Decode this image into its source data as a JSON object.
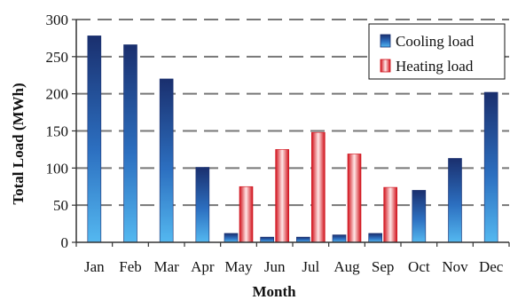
{
  "chart_data": {
    "type": "bar",
    "categories": [
      "Jan",
      "Feb",
      "Mar",
      "Apr",
      "May",
      "Jun",
      "Jul",
      "Aug",
      "Sep",
      "Oct",
      "Nov",
      "Dec"
    ],
    "series": [
      {
        "name": "Cooling load",
        "values": [
          278,
          266,
          220,
          101,
          12,
          7,
          7,
          10,
          12,
          70,
          113,
          202
        ],
        "color": "#1f3f8f"
      },
      {
        "name": "Heating load",
        "values": [
          null,
          null,
          null,
          null,
          75,
          125,
          148,
          119,
          74,
          null,
          null,
          null
        ],
        "color": "#e01b24"
      }
    ],
    "xlabel": "Month",
    "ylabel": "Total Load (MWh)",
    "ylim": [
      0,
      300
    ],
    "yticks": [
      "0",
      "50",
      "100",
      "150",
      "200",
      "250",
      "300"
    ],
    "grid": true,
    "legend": "top-right"
  }
}
